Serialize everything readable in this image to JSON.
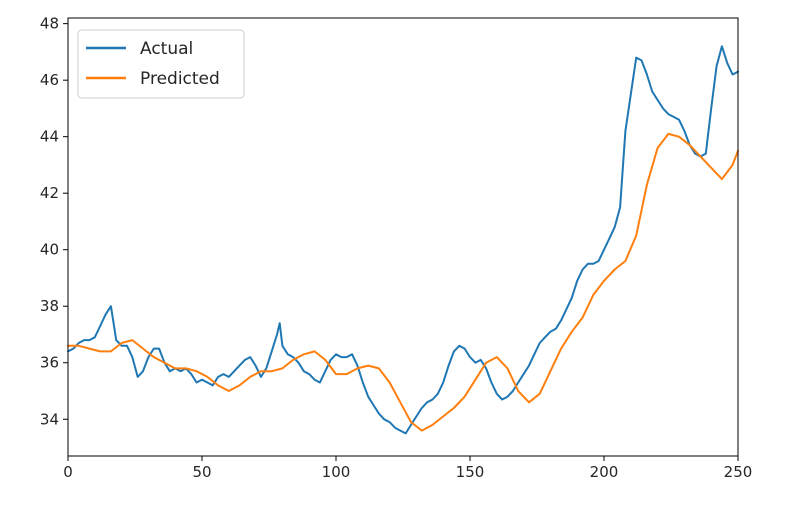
{
  "chart_data": {
    "type": "line",
    "title": "",
    "xlabel": "",
    "ylabel": "",
    "xlim": [
      0,
      250
    ],
    "ylim": [
      32.7,
      48.2
    ],
    "xticks": [
      0,
      50,
      100,
      150,
      200,
      250
    ],
    "yticks": [
      34,
      36,
      38,
      40,
      42,
      44,
      46,
      48
    ],
    "grid": false,
    "legend_position": "upper-left",
    "series": [
      {
        "name": "Actual",
        "color": "#1f77b4",
        "x": [
          0,
          2,
          4,
          6,
          8,
          10,
          12,
          14,
          16,
          17,
          18,
          20,
          22,
          24,
          26,
          28,
          30,
          32,
          34,
          36,
          38,
          40,
          42,
          44,
          46,
          48,
          50,
          52,
          54,
          56,
          58,
          60,
          62,
          64,
          66,
          68,
          70,
          72,
          74,
          76,
          78,
          79,
          80,
          82,
          84,
          86,
          88,
          90,
          92,
          94,
          96,
          98,
          100,
          102,
          104,
          106,
          108,
          110,
          112,
          114,
          116,
          118,
          120,
          122,
          124,
          126,
          128,
          130,
          132,
          134,
          136,
          138,
          140,
          142,
          144,
          146,
          148,
          150,
          152,
          154,
          156,
          158,
          160,
          162,
          164,
          166,
          168,
          170,
          172,
          174,
          176,
          178,
          180,
          182,
          184,
          186,
          188,
          190,
          192,
          194,
          196,
          198,
          200,
          202,
          204,
          206,
          208,
          210,
          212,
          214,
          216,
          218,
          220,
          222,
          224,
          226,
          228,
          230,
          232,
          234,
          236,
          238,
          240,
          242,
          244,
          246,
          248,
          250
        ],
        "values": [
          36.4,
          36.5,
          36.7,
          36.8,
          36.8,
          36.9,
          37.3,
          37.7,
          38.0,
          37.4,
          36.8,
          36.6,
          36.6,
          36.2,
          35.5,
          35.7,
          36.2,
          36.5,
          36.5,
          36.0,
          35.7,
          35.8,
          35.7,
          35.8,
          35.6,
          35.3,
          35.4,
          35.3,
          35.2,
          35.5,
          35.6,
          35.5,
          35.7,
          35.9,
          36.1,
          36.2,
          35.9,
          35.5,
          35.8,
          36.4,
          37.0,
          37.4,
          36.6,
          36.3,
          36.2,
          36.0,
          35.7,
          35.6,
          35.4,
          35.3,
          35.7,
          36.1,
          36.3,
          36.2,
          36.2,
          36.3,
          35.9,
          35.3,
          34.8,
          34.5,
          34.2,
          34.0,
          33.9,
          33.7,
          33.6,
          33.5,
          33.8,
          34.1,
          34.4,
          34.6,
          34.7,
          34.9,
          35.3,
          35.9,
          36.4,
          36.6,
          36.5,
          36.2,
          36.0,
          36.1,
          35.8,
          35.3,
          34.9,
          34.7,
          34.8,
          35.0,
          35.3,
          35.6,
          35.9,
          36.3,
          36.7,
          36.9,
          37.1,
          37.2,
          37.5,
          37.9,
          38.3,
          38.9,
          39.3,
          39.5,
          39.5,
          39.6,
          40.0,
          40.4,
          40.8,
          41.5,
          44.2,
          45.5,
          46.8,
          46.7,
          46.2,
          45.6,
          45.3,
          45.0,
          44.8,
          44.7,
          44.6,
          44.2,
          43.7,
          43.4,
          43.3,
          43.4,
          45.0,
          46.5,
          47.2,
          46.6,
          46.2,
          46.3
        ]
      },
      {
        "name": "Predicted",
        "color": "#ff7f0e",
        "x": [
          0,
          4,
          8,
          12,
          16,
          20,
          24,
          28,
          32,
          36,
          40,
          44,
          48,
          52,
          56,
          60,
          64,
          68,
          72,
          76,
          80,
          84,
          88,
          92,
          96,
          100,
          104,
          108,
          112,
          116,
          120,
          124,
          128,
          132,
          136,
          140,
          144,
          148,
          152,
          156,
          160,
          164,
          168,
          172,
          176,
          180,
          184,
          188,
          192,
          196,
          200,
          204,
          208,
          212,
          216,
          220,
          224,
          228,
          232,
          236,
          240,
          244,
          248,
          250
        ],
        "values": [
          36.6,
          36.6,
          36.5,
          36.4,
          36.4,
          36.7,
          36.8,
          36.5,
          36.2,
          36.0,
          35.8,
          35.8,
          35.7,
          35.5,
          35.2,
          35.0,
          35.2,
          35.5,
          35.7,
          35.7,
          35.8,
          36.1,
          36.3,
          36.4,
          36.1,
          35.6,
          35.6,
          35.8,
          35.9,
          35.8,
          35.3,
          34.6,
          33.9,
          33.6,
          33.8,
          34.1,
          34.4,
          34.8,
          35.4,
          36.0,
          36.2,
          35.8,
          35.0,
          34.6,
          34.9,
          35.7,
          36.5,
          37.1,
          37.6,
          38.4,
          38.9,
          39.3,
          39.6,
          40.5,
          42.3,
          43.6,
          44.1,
          44.0,
          43.7,
          43.3,
          42.9,
          42.5,
          43.0,
          43.5
        ]
      }
    ]
  }
}
